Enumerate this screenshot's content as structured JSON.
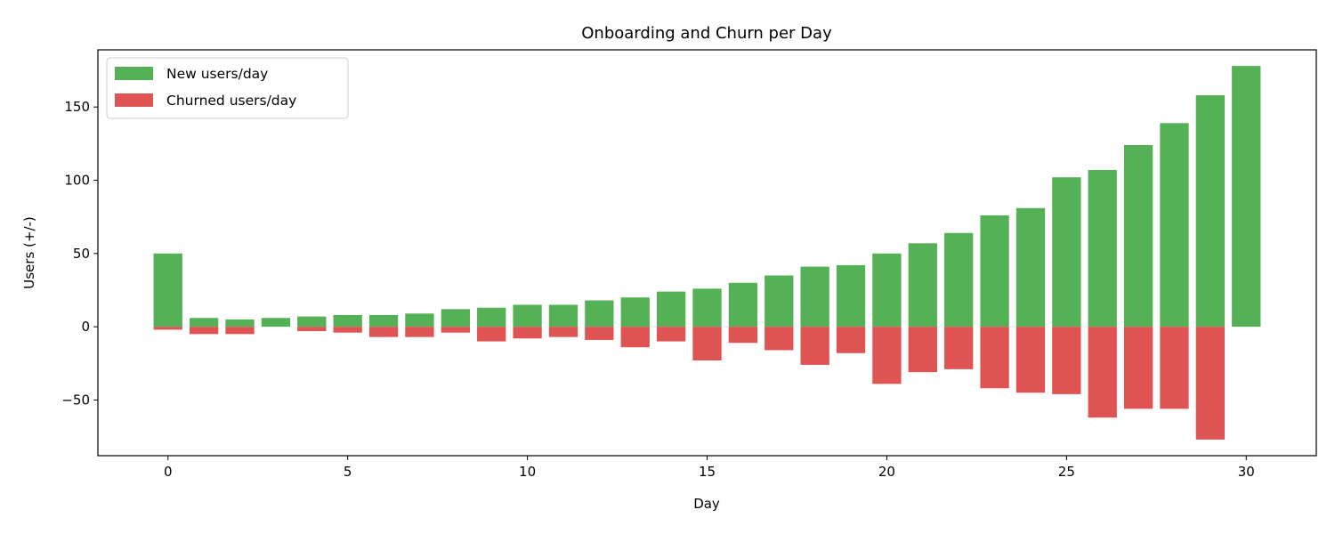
{
  "chart_data": {
    "type": "bar",
    "title": "Onboarding and Churn per Day",
    "xlabel": "Day",
    "ylabel": "Users (+/-)",
    "x": [
      0,
      1,
      2,
      3,
      4,
      5,
      6,
      7,
      8,
      9,
      10,
      11,
      12,
      13,
      14,
      15,
      16,
      17,
      18,
      19,
      20,
      21,
      22,
      23,
      24,
      25,
      26,
      27,
      28,
      29,
      30
    ],
    "xlim": [
      -1.95,
      31.95
    ],
    "ylim": [
      -88,
      189
    ],
    "xticks": [
      0,
      5,
      10,
      15,
      20,
      25,
      30
    ],
    "yticks": [
      -50,
      0,
      50,
      100,
      150
    ],
    "ytick_labels": [
      "−50",
      "0",
      "50",
      "100",
      "150"
    ],
    "grid": false,
    "legend_position": "top-left",
    "series": [
      {
        "name": "New users/day",
        "color": "#55b155",
        "values": [
          50,
          6,
          5,
          6,
          7,
          8,
          8,
          9,
          12,
          13,
          15,
          15,
          18,
          20,
          24,
          26,
          30,
          35,
          41,
          42,
          50,
          57,
          64,
          76,
          81,
          102,
          107,
          124,
          139,
          158,
          178
        ]
      },
      {
        "name": "Churned users/day",
        "color": "#e05353",
        "values": [
          -2,
          -5,
          -5,
          0,
          -3,
          -4,
          -7,
          -7,
          -4,
          -10,
          -8,
          -7,
          -9,
          -14,
          -10,
          -23,
          -11,
          -16,
          -26,
          -18,
          -39,
          -31,
          -29,
          -42,
          -45,
          -46,
          -62,
          -56,
          -56,
          -77,
          0
        ]
      }
    ]
  }
}
